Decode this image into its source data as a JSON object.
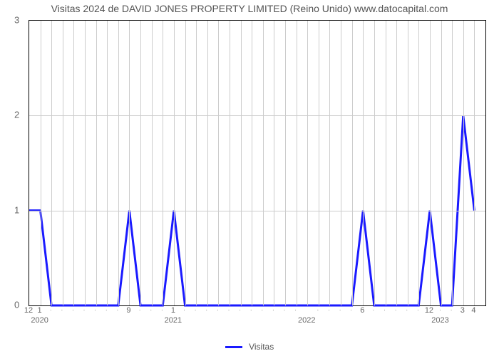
{
  "chart": {
    "type": "line",
    "title": "Visitas 2024 de DAVID JONES PROPERTY LIMITED (Reino Unido) www.datocapital.com",
    "title_fontsize": 14,
    "title_color": "#555555",
    "background_color": "#ffffff",
    "plot_border_color": "#000000",
    "grid_color": "#cccccc",
    "line_color": "#1a1aff",
    "line_width": 3,
    "yaxis": {
      "min": 0,
      "max": 3,
      "ticks": [
        0,
        1,
        2,
        3
      ],
      "label_color": "#666666",
      "label_fontsize": 13
    },
    "xaxis": {
      "total_months": 41,
      "major_ticks": [
        {
          "pos": 0,
          "label": "12"
        },
        {
          "pos": 1,
          "label": "1"
        },
        {
          "pos": 9,
          "label": "9"
        },
        {
          "pos": 13,
          "label": "1"
        },
        {
          "pos": 25,
          "label": ""
        },
        {
          "pos": 30,
          "label": "6"
        },
        {
          "pos": 36,
          "label": "12"
        },
        {
          "pos": 39,
          "label": "3"
        },
        {
          "pos": 40,
          "label": "4"
        }
      ],
      "minor_tick_positions": [
        2,
        3,
        4,
        5,
        6,
        7,
        8,
        10,
        11,
        12,
        14,
        15,
        16,
        17,
        18,
        19,
        20,
        21,
        22,
        23,
        24,
        26,
        27,
        28,
        29,
        31,
        32,
        33,
        34,
        35,
        37,
        38
      ],
      "year_labels": [
        {
          "pos": 1,
          "label": "2020"
        },
        {
          "pos": 13,
          "label": "2021"
        },
        {
          "pos": 25,
          "label": "2022"
        },
        {
          "pos": 37,
          "label": "2023"
        }
      ],
      "label_color": "#666666",
      "label_fontsize": 11
    },
    "data_points": [
      {
        "x": 0,
        "y": 1
      },
      {
        "x": 1,
        "y": 1
      },
      {
        "x": 2,
        "y": 0
      },
      {
        "x": 3,
        "y": 0
      },
      {
        "x": 4,
        "y": 0
      },
      {
        "x": 5,
        "y": 0
      },
      {
        "x": 6,
        "y": 0
      },
      {
        "x": 7,
        "y": 0
      },
      {
        "x": 8,
        "y": 0
      },
      {
        "x": 9,
        "y": 1
      },
      {
        "x": 10,
        "y": 0
      },
      {
        "x": 11,
        "y": 0
      },
      {
        "x": 12,
        "y": 0
      },
      {
        "x": 13,
        "y": 1
      },
      {
        "x": 14,
        "y": 0
      },
      {
        "x": 15,
        "y": 0
      },
      {
        "x": 16,
        "y": 0
      },
      {
        "x": 17,
        "y": 0
      },
      {
        "x": 18,
        "y": 0
      },
      {
        "x": 19,
        "y": 0
      },
      {
        "x": 20,
        "y": 0
      },
      {
        "x": 21,
        "y": 0
      },
      {
        "x": 22,
        "y": 0
      },
      {
        "x": 23,
        "y": 0
      },
      {
        "x": 24,
        "y": 0
      },
      {
        "x": 25,
        "y": 0
      },
      {
        "x": 26,
        "y": 0
      },
      {
        "x": 27,
        "y": 0
      },
      {
        "x": 28,
        "y": 0
      },
      {
        "x": 29,
        "y": 0
      },
      {
        "x": 30,
        "y": 1
      },
      {
        "x": 31,
        "y": 0
      },
      {
        "x": 32,
        "y": 0
      },
      {
        "x": 33,
        "y": 0
      },
      {
        "x": 34,
        "y": 0
      },
      {
        "x": 35,
        "y": 0
      },
      {
        "x": 36,
        "y": 1
      },
      {
        "x": 37,
        "y": 0
      },
      {
        "x": 38,
        "y": 0
      },
      {
        "x": 39,
        "y": 2
      },
      {
        "x": 40,
        "y": 1
      }
    ],
    "legend": {
      "label": "Visitas",
      "color": "#1a1aff"
    }
  }
}
